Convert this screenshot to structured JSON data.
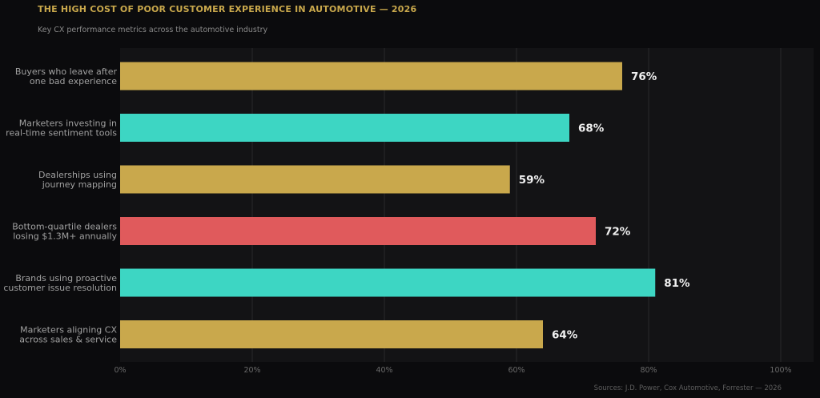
{
  "header": {
    "title": "THE HIGH COST OF POOR CUSTOMER EXPERIENCE IN AUTOMOTIVE — 2026",
    "subtitle": "Key CX performance metrics across the automotive industry"
  },
  "footer": {
    "source": "Sources: J.D. Power, Cox Automotive, Forrester — 2026"
  },
  "colors": {
    "background": "#0b0b0d",
    "plot_background": "#131315",
    "gold": "#c9a84c",
    "teal": "#3dd6c3",
    "red": "#e05a5c",
    "label_text": "#a0a0a0",
    "value_text": "#f0f0f0",
    "grid": "#2a2a2c",
    "tick_text": "#6a6a6a"
  },
  "chart_data": {
    "type": "bar",
    "orientation": "horizontal",
    "categories": [
      [
        "Buyers who leave after",
        "one bad experience"
      ],
      [
        "Marketers investing in",
        "real-time sentiment tools"
      ],
      [
        "Dealerships using",
        "journey mapping"
      ],
      [
        "Bottom-quartile dealers",
        "losing $1.3M+ annually"
      ],
      [
        "Brands using proactive",
        "customer issue resolution"
      ],
      [
        "Marketers aligning CX",
        "across sales & service"
      ]
    ],
    "values": [
      76,
      68,
      59,
      72,
      81,
      64
    ],
    "value_labels": [
      "76%",
      "68%",
      "59%",
      "72%",
      "81%",
      "64%"
    ],
    "bar_colors": [
      "gold",
      "teal",
      "gold",
      "red",
      "teal",
      "gold"
    ],
    "xlim": [
      0,
      105
    ],
    "xticks": [
      0,
      20,
      40,
      60,
      80,
      100
    ],
    "xtick_labels": [
      "0%",
      "20%",
      "40%",
      "60%",
      "80%",
      "100%"
    ],
    "grid": "vertical"
  }
}
